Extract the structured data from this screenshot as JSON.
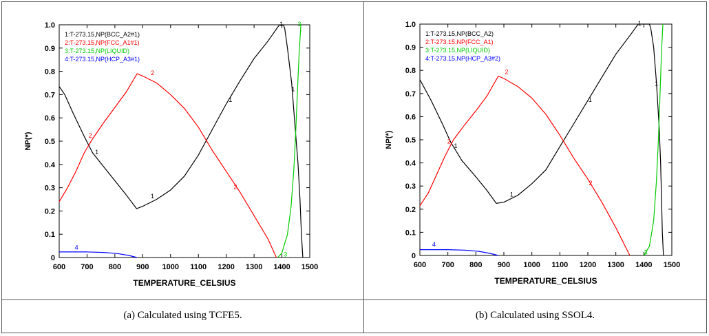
{
  "chart_data": [
    {
      "type": "line",
      "caption": "(a) Calculated using TCFE5.",
      "xlabel": "TEMPERATURE_CELSIUS",
      "ylabel": "NP(*)",
      "xlim": [
        600,
        1500
      ],
      "ylim": [
        0,
        1.0
      ],
      "xticks": [
        "600",
        "700",
        "800",
        "900",
        "1000",
        "1100",
        "1200",
        "1300",
        "1400",
        "1500"
      ],
      "yticks": [
        "0",
        "0.1",
        "0.2",
        "0.3",
        "0.4",
        "0.5",
        "0.6",
        "0.7",
        "0.8",
        "0.9",
        "1.0"
      ],
      "series": [
        {
          "id": "1",
          "name": "1:T-273.15,NP(BCC_A2#1)",
          "color": "#000000",
          "points": [
            [
              600,
              0.735
            ],
            [
              620,
              0.7
            ],
            [
              650,
              0.62
            ],
            [
              690,
              0.52
            ],
            [
              720,
              0.45
            ],
            [
              760,
              0.39
            ],
            [
              800,
              0.33
            ],
            [
              840,
              0.27
            ],
            [
              878,
              0.21
            ],
            [
              900,
              0.22
            ],
            [
              950,
              0.25
            ],
            [
              1000,
              0.29
            ],
            [
              1050,
              0.35
            ],
            [
              1100,
              0.44
            ],
            [
              1150,
              0.55
            ],
            [
              1200,
              0.66
            ],
            [
              1250,
              0.76
            ],
            [
              1300,
              0.855
            ],
            [
              1350,
              0.93
            ],
            [
              1385,
              0.99
            ],
            [
              1392,
              1.0
            ],
            [
              1405,
              1.0
            ],
            [
              1410,
              0.985
            ],
            [
              1420,
              0.9
            ],
            [
              1435,
              0.75
            ],
            [
              1448,
              0.55
            ],
            [
              1458,
              0.4
            ],
            [
              1465,
              0.25
            ],
            [
              1470,
              0.1
            ],
            [
              1475,
              0.0
            ]
          ],
          "labels": [
            [
              735,
              0.45
            ],
            [
              935,
              0.26
            ],
            [
              1215,
              0.675
            ],
            [
              1440,
              0.72
            ],
            [
              1398,
              1.0
            ]
          ]
        },
        {
          "id": "2",
          "name": "2:T-273.15,NP(FCC_A1#1)",
          "color": "#ff0000",
          "points": [
            [
              600,
              0.24
            ],
            [
              630,
              0.3
            ],
            [
              660,
              0.37
            ],
            [
              690,
              0.45
            ],
            [
              720,
              0.51
            ],
            [
              760,
              0.58
            ],
            [
              800,
              0.645
            ],
            [
              840,
              0.71
            ],
            [
              880,
              0.79
            ],
            [
              900,
              0.78
            ],
            [
              950,
              0.75
            ],
            [
              1000,
              0.7
            ],
            [
              1050,
              0.64
            ],
            [
              1100,
              0.56
            ],
            [
              1150,
              0.46
            ],
            [
              1200,
              0.37
            ],
            [
              1250,
              0.28
            ],
            [
              1300,
              0.18
            ],
            [
              1350,
              0.08
            ],
            [
              1380,
              0.0
            ]
          ],
          "labels": [
            [
              712,
              0.52
            ],
            [
              935,
              0.79
            ],
            [
              1233,
              0.3
            ]
          ]
        },
        {
          "id": "3",
          "name": "3:T-273.15,NP(LIQUID)",
          "color": "#00cc00",
          "points": [
            [
              1385,
              0.0
            ],
            [
              1400,
              0.02
            ],
            [
              1420,
              0.1
            ],
            [
              1433,
              0.22
            ],
            [
              1443,
              0.38
            ],
            [
              1450,
              0.55
            ],
            [
              1456,
              0.72
            ],
            [
              1462,
              0.88
            ],
            [
              1468,
              1.0
            ]
          ],
          "labels": [
            [
              1413,
              0.01
            ],
            [
              1463,
              1.0
            ]
          ]
        },
        {
          "id": "4",
          "name": "4:T-273.15,NP(HCP_A3#1)",
          "color": "#0000ff",
          "points": [
            [
              600,
              0.024
            ],
            [
              700,
              0.024
            ],
            [
              760,
              0.022
            ],
            [
              810,
              0.017
            ],
            [
              850,
              0.009
            ],
            [
              880,
              0.0
            ]
          ],
          "labels": [
            [
              662,
              0.04
            ]
          ]
        }
      ]
    },
    {
      "type": "line",
      "caption": "(b) Calculated using SSOL4.",
      "xlabel": "TEMPERATURE_CELSIUS",
      "ylabel": "NP(*)",
      "xlim": [
        600,
        1500
      ],
      "ylim": [
        0,
        1.0
      ],
      "xticks": [
        "600",
        "700",
        "800",
        "900",
        "1000",
        "1100",
        "1200",
        "1300",
        "1400",
        "1500"
      ],
      "yticks": [
        "0",
        "0.1",
        "0.2",
        "0.3",
        "0.4",
        "0.5",
        "0.6",
        "0.7",
        "0.8",
        "0.9",
        "1.0"
      ],
      "series": [
        {
          "id": "1",
          "name": "1:T-273.15,NP(BCC_A2)",
          "color": "#000000",
          "points": [
            [
              600,
              0.76
            ],
            [
              640,
              0.67
            ],
            [
              680,
              0.57
            ],
            [
              710,
              0.49
            ],
            [
              750,
              0.41
            ],
            [
              800,
              0.34
            ],
            [
              840,
              0.28
            ],
            [
              873,
              0.225
            ],
            [
              900,
              0.23
            ],
            [
              950,
              0.26
            ],
            [
              1000,
              0.31
            ],
            [
              1050,
              0.37
            ],
            [
              1100,
              0.47
            ],
            [
              1150,
              0.57
            ],
            [
              1200,
              0.67
            ],
            [
              1250,
              0.77
            ],
            [
              1300,
              0.87
            ],
            [
              1350,
              0.95
            ],
            [
              1380,
              1.0
            ],
            [
              1420,
              1.0
            ],
            [
              1425,
              0.98
            ],
            [
              1435,
              0.9
            ],
            [
              1445,
              0.75
            ],
            [
              1455,
              0.55
            ],
            [
              1460,
              0.4
            ],
            [
              1463,
              0.25
            ],
            [
              1466,
              0.1
            ],
            [
              1470,
              0.0
            ]
          ],
          "labels": [
            [
              728,
              0.47
            ],
            [
              928,
              0.26
            ],
            [
              1208,
              0.67
            ],
            [
              1445,
              0.74
            ],
            [
              1385,
              1.0
            ]
          ]
        },
        {
          "id": "2",
          "name": "2:T-273.15,NP(FCC_A1)",
          "color": "#ff0000",
          "points": [
            [
              600,
              0.215
            ],
            [
              630,
              0.27
            ],
            [
              660,
              0.35
            ],
            [
              690,
              0.43
            ],
            [
              720,
              0.5
            ],
            [
              760,
              0.565
            ],
            [
              800,
              0.625
            ],
            [
              840,
              0.69
            ],
            [
              880,
              0.775
            ],
            [
              900,
              0.765
            ],
            [
              950,
              0.73
            ],
            [
              1000,
              0.68
            ],
            [
              1050,
              0.61
            ],
            [
              1100,
              0.52
            ],
            [
              1150,
              0.42
            ],
            [
              1200,
              0.33
            ],
            [
              1250,
              0.23
            ],
            [
              1300,
              0.12
            ],
            [
              1350,
              0.0
            ]
          ],
          "labels": [
            [
              704,
              0.49
            ],
            [
              910,
              0.79
            ],
            [
              1210,
              0.31
            ]
          ]
        },
        {
          "id": "3",
          "name": "3:T-273.15,NP(LIQUID)",
          "color": "#00cc00",
          "points": [
            [
              1400,
              0.0
            ],
            [
              1420,
              0.04
            ],
            [
              1435,
              0.15
            ],
            [
              1445,
              0.32
            ],
            [
              1452,
              0.5
            ],
            [
              1458,
              0.7
            ],
            [
              1463,
              0.88
            ],
            [
              1468,
              1.0
            ]
          ],
          "labels": [
            [
              1407,
              0.01
            ]
          ]
        },
        {
          "id": "4",
          "name": "4:T-273.15,NP(HCP_A3#2)",
          "color": "#0000ff",
          "points": [
            [
              600,
              0.025
            ],
            [
              700,
              0.025
            ],
            [
              760,
              0.023
            ],
            [
              810,
              0.018
            ],
            [
              850,
              0.009
            ],
            [
              880,
              0.0
            ]
          ],
          "labels": [
            [
              650,
              0.045
            ]
          ]
        }
      ]
    }
  ]
}
